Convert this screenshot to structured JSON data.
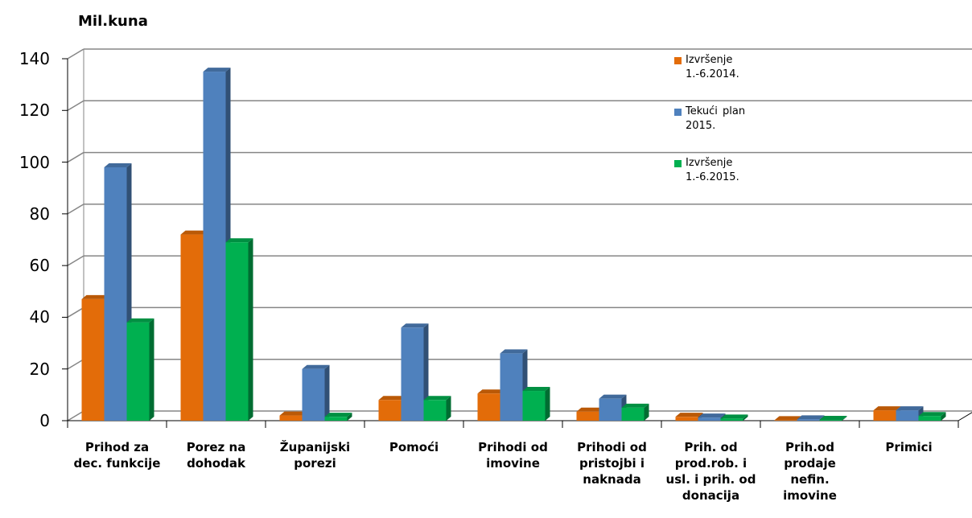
{
  "chart_data": {
    "type": "bar",
    "unit_label": "Mil.kuna",
    "categories": [
      "Prihod za dec. funkcije",
      "Porez na dohodak",
      "Županijski porezi",
      "Pomoći",
      "Prihodi od imovine",
      "Prihodi od pristojbi i naknada",
      "Prih. od prod.rob. i usl. i prih. od donacija",
      "Prih.od prodaje nefin. imovine",
      "Primici"
    ],
    "series": [
      {
        "name": "Izvršenje 1.-6.2014.",
        "color": "#E36C09",
        "values": [
          47,
          72,
          2,
          8,
          10.5,
          3.5,
          1.5,
          0.2,
          4
        ]
      },
      {
        "name": "Tekući plan 2015.",
        "color": "#4F81BD",
        "values": [
          98,
          135,
          20,
          36,
          26,
          8.5,
          1.2,
          0.5,
          4
        ]
      },
      {
        "name": "Izvršenje 1.-6.2015.",
        "color": "#00B050",
        "values": [
          38,
          69,
          1.5,
          8,
          11.5,
          5,
          0.8,
          0.3,
          1.8
        ]
      }
    ],
    "ylim": [
      0,
      140
    ],
    "yticks": [
      0,
      20,
      40,
      60,
      80,
      100,
      120,
      140
    ],
    "ytick_labels": [
      "0",
      "20",
      "40",
      "60",
      "80",
      "100",
      "120",
      "140"
    ],
    "grid": true,
    "legend_position": "top-right",
    "style": "3d-clustered-column"
  }
}
